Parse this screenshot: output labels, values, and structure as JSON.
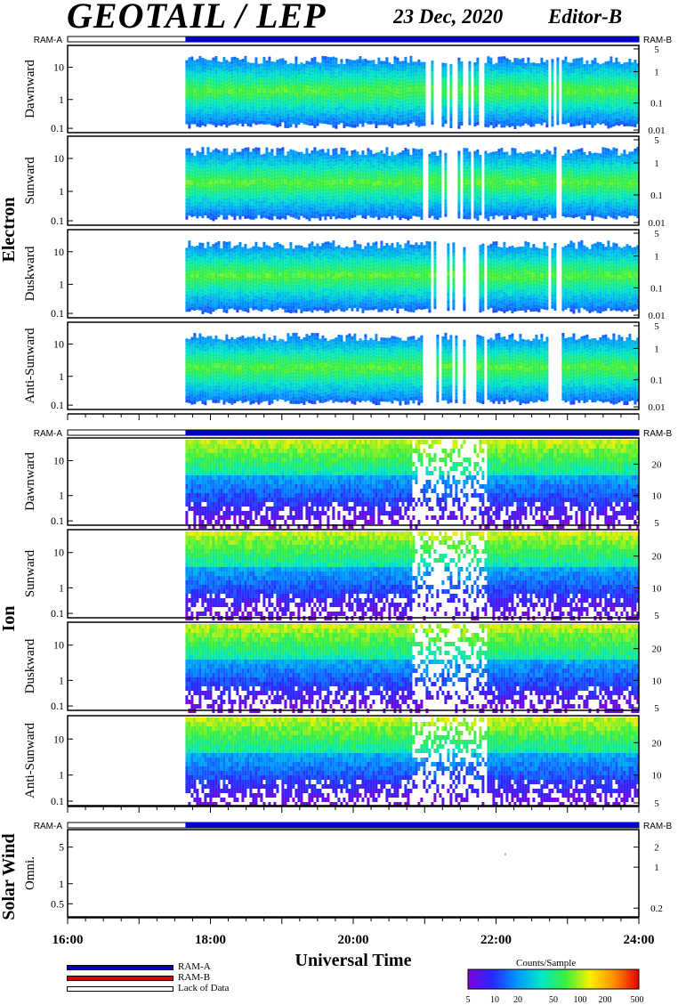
{
  "header": {
    "title": "GEOTAIL / LEP",
    "date": "23 Dec, 2020",
    "editor": "Editor-B"
  },
  "chart_data": {
    "type": "heatmap",
    "x_axis": {
      "label": "Universal Time",
      "range_hours": [
        16,
        24
      ],
      "tick_labels": [
        "16:00",
        "18:00",
        "20:00",
        "22:00",
        "24:00"
      ],
      "data_start_hour": 17.65
    },
    "ram_labels": {
      "left": "RAM-A",
      "right": "RAM-B"
    },
    "groups": [
      {
        "name": "Electron",
        "panels": [
          {
            "label": "Dawnward",
            "left_ticks": [
              "10",
              "1",
              "0.1"
            ],
            "right_ticks": [
              "5",
              "1",
              "0.1",
              "0.01"
            ]
          },
          {
            "label": "Sunward",
            "left_ticks": [
              "10",
              "1",
              "0.1"
            ],
            "right_ticks": [
              "5",
              "1",
              "0.1",
              "0.01"
            ]
          },
          {
            "label": "Duskward",
            "left_ticks": [
              "10",
              "1",
              "0.1"
            ],
            "right_ticks": [
              "5",
              "1",
              "0.1",
              "0.01"
            ]
          },
          {
            "label": "Anti-Sunward",
            "left_ticks": [
              "10",
              "1",
              "0.1"
            ],
            "right_ticks": [
              "5",
              "1",
              "0.1",
              "0.01"
            ]
          }
        ]
      },
      {
        "name": "Ion",
        "panels": [
          {
            "label": "Dawnward",
            "left_ticks": [
              "10",
              "1",
              "0.1"
            ],
            "right_ticks": [
              "20",
              "10",
              "5"
            ]
          },
          {
            "label": "Sunward",
            "left_ticks": [
              "10",
              "1",
              "0.1"
            ],
            "right_ticks": [
              "20",
              "10",
              "5"
            ]
          },
          {
            "label": "Duskward",
            "left_ticks": [
              "10",
              "1",
              "0.1"
            ],
            "right_ticks": [
              "20",
              "10",
              "5"
            ]
          },
          {
            "label": "Anti-Sunward",
            "left_ticks": [
              "10",
              "1",
              "0.1"
            ],
            "right_ticks": [
              "20",
              "10",
              "5"
            ]
          }
        ]
      },
      {
        "name": "Solar Wind",
        "panels": [
          {
            "label": "Omni.",
            "left_ticks": [
              "5",
              "1",
              "0.5"
            ],
            "right_ticks": [
              "2",
              "1",
              "0.2"
            ]
          }
        ]
      }
    ],
    "legend": [
      {
        "label": "RAM-A",
        "color": "#0000c8"
      },
      {
        "label": "RAM-B",
        "color": "#e00000"
      },
      {
        "label": "Lack of Data",
        "color": "#ffffff"
      }
    ],
    "colorbar": {
      "title": "Counts/Sample",
      "ticks": [
        "5",
        "10",
        "20",
        "50",
        "100",
        "200",
        "500"
      ]
    }
  }
}
